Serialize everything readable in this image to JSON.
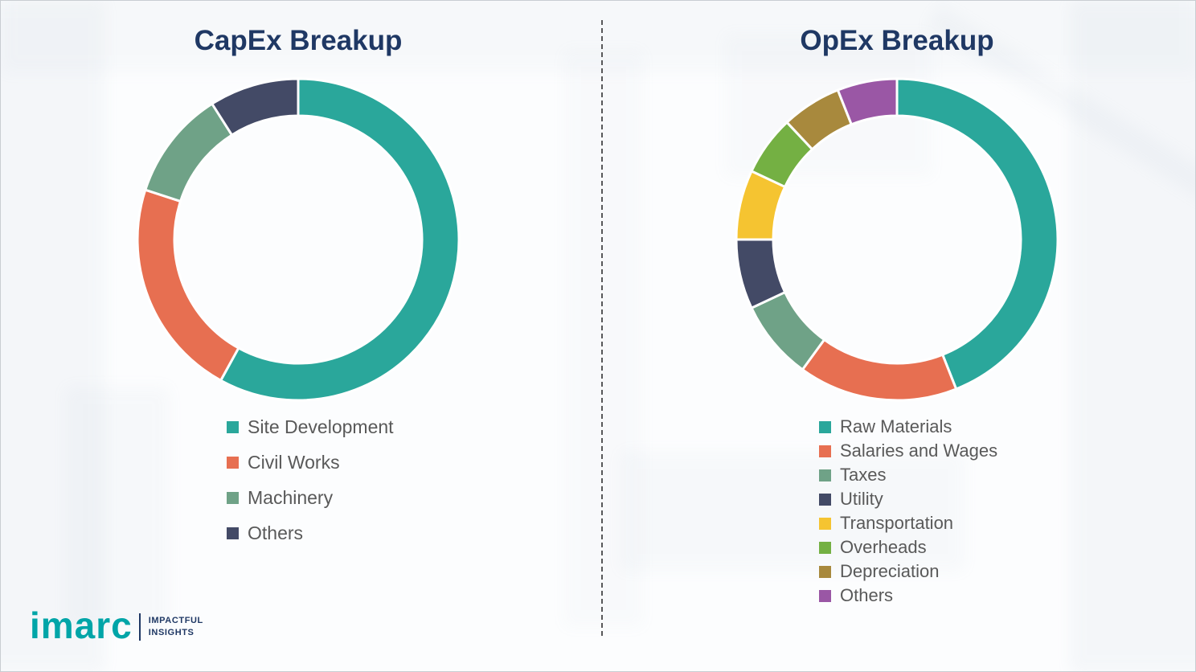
{
  "chart_data": [
    {
      "type": "pie",
      "subtype": "donut",
      "title": "CapEx Breakup",
      "labels": [
        "Site Development",
        "Civil Works",
        "Machinery",
        "Others"
      ],
      "values": [
        58,
        22,
        11,
        9
      ],
      "unit": "percent",
      "colors": [
        "#2AA79B",
        "#E76F51",
        "#6FA287",
        "#434A66"
      ],
      "legend_position": "below-left",
      "donut_hole_ratio": 0.77,
      "start_angle_deg": 0,
      "direction": "clockwise"
    },
    {
      "type": "pie",
      "subtype": "donut",
      "title": "OpEx Breakup",
      "labels": [
        "Raw Materials",
        "Salaries and Wages",
        "Taxes",
        "Utility",
        "Transportation",
        "Overheads",
        "Depreciation",
        "Others"
      ],
      "values": [
        44,
        16,
        8,
        7,
        7,
        6,
        6,
        6
      ],
      "unit": "percent",
      "colors": [
        "#2AA79B",
        "#E76F51",
        "#6FA287",
        "#434A66",
        "#F5C431",
        "#74B043",
        "#A8893D",
        "#9A57A5"
      ],
      "legend_position": "below-left",
      "donut_hole_ratio": 0.77,
      "start_angle_deg": 0,
      "direction": "clockwise"
    }
  ],
  "logo": {
    "brand": "imarc",
    "tagline_line1": "IMPACTFUL",
    "tagline_line2": "INSIGHTS",
    "brand_color": "#00A5A8",
    "tagline_color": "#1F3864"
  },
  "theme": {
    "title_color": "#1F3864",
    "legend_text_color": "#595959",
    "segment_gap_color": "#FFFFFF",
    "background": "#FCFDFE",
    "divider_color": "#58585A"
  }
}
